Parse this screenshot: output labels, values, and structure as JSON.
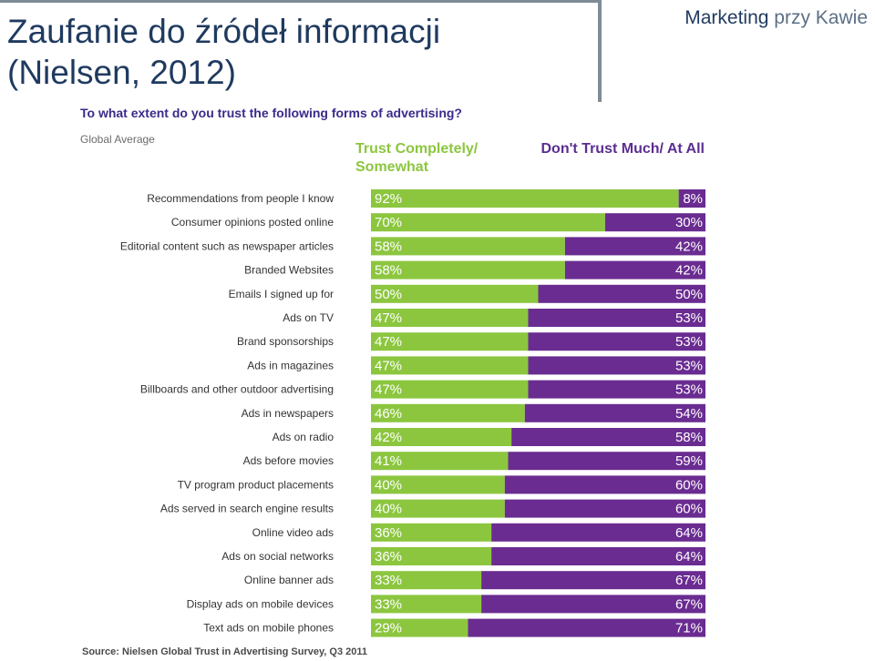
{
  "slide": {
    "title_line1": "Zaufanie do źródeł informacji",
    "title_line2": "(Nielsen, 2012)",
    "brand_main": "Marketing",
    "brand_rest": "przy Kawie"
  },
  "colors": {
    "trust": "#8cc63f",
    "distrust": "#6a2c91",
    "title": "#1f3a5f"
  },
  "chart_data": {
    "type": "bar",
    "orientation": "horizontal-stacked-100",
    "title": "To what extent do you trust the following forms of advertising?",
    "subtitle": "Global Average",
    "source": "Source: Nielsen Global Trust in Advertising Survey, Q3 2011",
    "legend": [
      "Trust Completely/ Somewhat",
      "Don't Trust Much/ At All"
    ],
    "categories": [
      "Recommendations from people I know",
      "Consumer opinions posted online",
      "Editorial content such as newspaper articles",
      "Branded Websites",
      "Emails I signed up for",
      "Ads on TV",
      "Brand sponsorships",
      "Ads in magazines",
      "Billboards and other outdoor advertising",
      "Ads in newspapers",
      "Ads on radio",
      "Ads before movies",
      "TV program product placements",
      "Ads served in search engine results",
      "Online video ads",
      "Ads on social networks",
      "Online banner ads",
      "Display ads on mobile devices",
      "Text ads on mobile phones"
    ],
    "series": [
      {
        "name": "Trust Completely/ Somewhat",
        "values": [
          92,
          70,
          58,
          58,
          50,
          47,
          47,
          47,
          47,
          46,
          42,
          41,
          40,
          40,
          36,
          36,
          33,
          33,
          29
        ]
      },
      {
        "name": "Don't Trust Much/ At All",
        "values": [
          8,
          30,
          42,
          42,
          50,
          53,
          53,
          53,
          53,
          54,
          58,
          59,
          60,
          60,
          64,
          64,
          67,
          67,
          71
        ]
      }
    ],
    "unit": "%",
    "xlim": [
      0,
      100
    ]
  }
}
